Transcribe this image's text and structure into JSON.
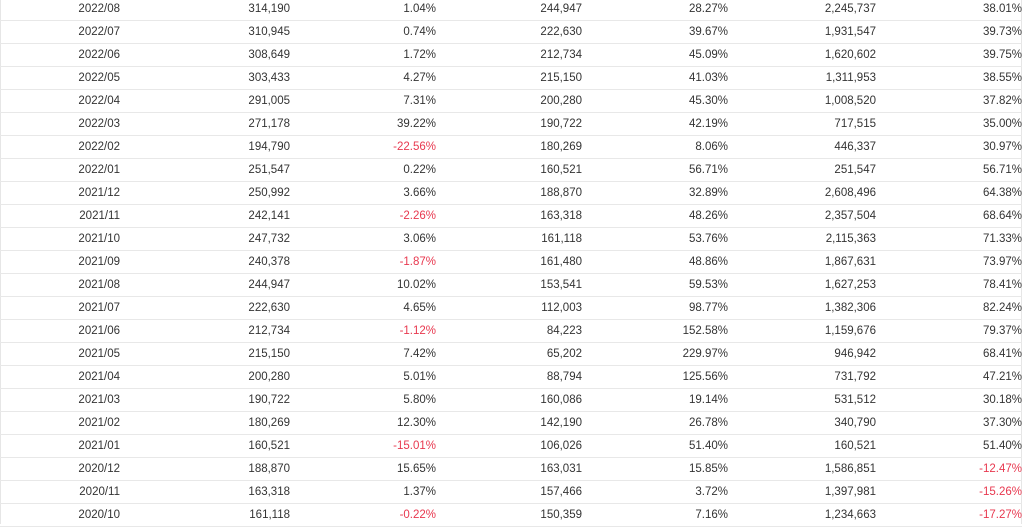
{
  "colors": {
    "negative": "#e8384f",
    "text": "#333333",
    "border": "#e8e8e8"
  },
  "rows": [
    [
      "2022/08",
      "314,190",
      "1.04%",
      "244,947",
      "28.27%",
      "2,245,737",
      "38.01%"
    ],
    [
      "2022/07",
      "310,945",
      "0.74%",
      "222,630",
      "39.67%",
      "1,931,547",
      "39.73%"
    ],
    [
      "2022/06",
      "308,649",
      "1.72%",
      "212,734",
      "45.09%",
      "1,620,602",
      "39.75%"
    ],
    [
      "2022/05",
      "303,433",
      "4.27%",
      "215,150",
      "41.03%",
      "1,311,953",
      "38.55%"
    ],
    [
      "2022/04",
      "291,005",
      "7.31%",
      "200,280",
      "45.30%",
      "1,008,520",
      "37.82%"
    ],
    [
      "2022/03",
      "271,178",
      "39.22%",
      "190,722",
      "42.19%",
      "717,515",
      "35.00%"
    ],
    [
      "2022/02",
      "194,790",
      "-22.56%",
      "180,269",
      "8.06%",
      "446,337",
      "30.97%"
    ],
    [
      "2022/01",
      "251,547",
      "0.22%",
      "160,521",
      "56.71%",
      "251,547",
      "56.71%"
    ],
    [
      "2021/12",
      "250,992",
      "3.66%",
      "188,870",
      "32.89%",
      "2,608,496",
      "64.38%"
    ],
    [
      "2021/11",
      "242,141",
      "-2.26%",
      "163,318",
      "48.26%",
      "2,357,504",
      "68.64%"
    ],
    [
      "2021/10",
      "247,732",
      "3.06%",
      "161,118",
      "53.76%",
      "2,115,363",
      "71.33%"
    ],
    [
      "2021/09",
      "240,378",
      "-1.87%",
      "161,480",
      "48.86%",
      "1,867,631",
      "73.97%"
    ],
    [
      "2021/08",
      "244,947",
      "10.02%",
      "153,541",
      "59.53%",
      "1,627,253",
      "78.41%"
    ],
    [
      "2021/07",
      "222,630",
      "4.65%",
      "112,003",
      "98.77%",
      "1,382,306",
      "82.24%"
    ],
    [
      "2021/06",
      "212,734",
      "-1.12%",
      "84,223",
      "152.58%",
      "1,159,676",
      "79.37%"
    ],
    [
      "2021/05",
      "215,150",
      "7.42%",
      "65,202",
      "229.97%",
      "946,942",
      "68.41%"
    ],
    [
      "2021/04",
      "200,280",
      "5.01%",
      "88,794",
      "125.56%",
      "731,792",
      "47.21%"
    ],
    [
      "2021/03",
      "190,722",
      "5.80%",
      "160,086",
      "19.14%",
      "531,512",
      "30.18%"
    ],
    [
      "2021/02",
      "180,269",
      "12.30%",
      "142,190",
      "26.78%",
      "340,790",
      "37.30%"
    ],
    [
      "2021/01",
      "160,521",
      "-15.01%",
      "106,026",
      "51.40%",
      "160,521",
      "51.40%"
    ],
    [
      "2020/12",
      "188,870",
      "15.65%",
      "163,031",
      "15.85%",
      "1,586,851",
      "-12.47%"
    ],
    [
      "2020/11",
      "163,318",
      "1.37%",
      "157,466",
      "3.72%",
      "1,397,981",
      "-15.26%"
    ],
    [
      "2020/10",
      "161,118",
      "-0.22%",
      "150,359",
      "7.16%",
      "1,234,663",
      "-17.27%"
    ]
  ]
}
